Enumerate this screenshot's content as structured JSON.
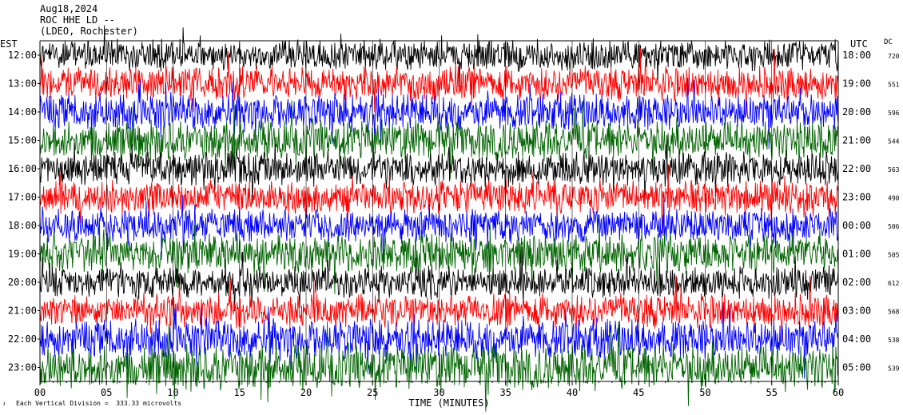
{
  "header": {
    "date": "Aug18,2024",
    "station": "ROC HHE LD --",
    "network": "(LDEO, Rochester)"
  },
  "chart_data": {
    "type": "line",
    "title": "Aug18,2024",
    "xlabel": "TIME (MINUTES)",
    "left_label": "EST",
    "right_label": "UTC",
    "dc_label": "DC",
    "xlim": [
      0,
      60
    ],
    "x_ticks": [
      "00",
      "05",
      "10",
      "15",
      "20",
      "25",
      "30",
      "35",
      "40",
      "45",
      "50",
      "55",
      "60"
    ],
    "trace_colors": [
      "#000000",
      "#ff0000",
      "#0000ff",
      "#006400"
    ],
    "rows": [
      {
        "est": "12:00",
        "utc": "18:00",
        "dc": "720",
        "amplitude": 0.55
      },
      {
        "est": "13:00",
        "utc": "19:00",
        "dc": "551",
        "amplitude": 0.6
      },
      {
        "est": "14:00",
        "utc": "20:00",
        "dc": "596",
        "amplitude": 0.65
      },
      {
        "est": "15:00",
        "utc": "21:00",
        "dc": "544",
        "amplitude": 0.7
      },
      {
        "est": "16:00",
        "utc": "22:00",
        "dc": "563",
        "amplitude": 0.6
      },
      {
        "est": "17:00",
        "utc": "23:00",
        "dc": "490",
        "amplitude": 0.6
      },
      {
        "est": "18:00",
        "utc": "00:00",
        "dc": "506",
        "amplitude": 0.6
      },
      {
        "est": "19:00",
        "utc": "01:00",
        "dc": "505",
        "amplitude": 0.7
      },
      {
        "est": "20:00",
        "utc": "02:00",
        "dc": "612",
        "amplitude": 0.55
      },
      {
        "est": "21:00",
        "utc": "03:00",
        "dc": "568",
        "amplitude": 0.6
      },
      {
        "est": "22:00",
        "utc": "04:00",
        "dc": "538",
        "amplitude": 0.7
      },
      {
        "est": "23:00",
        "utc": "05:00",
        "dc": "539",
        "amplitude": 0.8
      }
    ],
    "scale_note": "Each Vertical Division =  333.33 microvolts",
    "grid": "vertical every 5 minutes"
  }
}
